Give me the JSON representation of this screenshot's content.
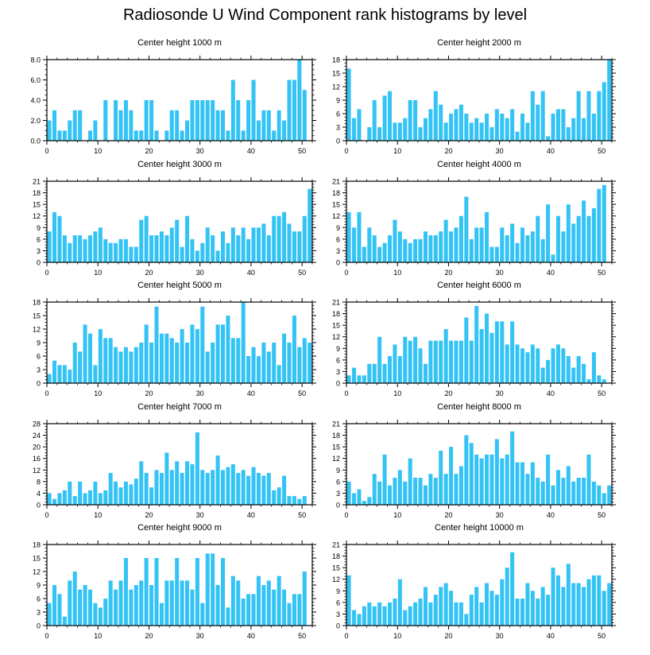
{
  "title": "Radiosonde U Wind Component rank histograms by level",
  "chart_data": [
    {
      "type": "bar",
      "title": "Center height 1000 m",
      "xlabel": "",
      "ylabel": "",
      "xlim": [
        0,
        52
      ],
      "ylim": [
        0,
        8
      ],
      "yticks": [
        0,
        2,
        4,
        6,
        8
      ],
      "ytick_labels": [
        "0.0",
        "2.0",
        "4.0",
        "6.0",
        "8.0"
      ],
      "xticks": [
        0,
        10,
        20,
        30,
        40,
        50
      ],
      "xtick_labels": [
        "0",
        "10",
        "20",
        "30",
        "40",
        "50"
      ],
      "x": [
        0,
        1,
        2,
        3,
        4,
        5,
        6,
        7,
        8,
        9,
        10,
        11,
        12,
        13,
        14,
        15,
        16,
        17,
        18,
        19,
        20,
        21,
        22,
        23,
        24,
        25,
        26,
        27,
        28,
        29,
        30,
        31,
        32,
        33,
        34,
        35,
        36,
        37,
        38,
        39,
        40,
        41,
        42,
        43,
        44,
        45,
        46,
        47,
        48,
        49,
        50,
        51
      ],
      "values": [
        2,
        3,
        1,
        1,
        2,
        3,
        3,
        0,
        1,
        2,
        0,
        4,
        0,
        4,
        3,
        4,
        3,
        1,
        1,
        4,
        4,
        1,
        0,
        1,
        3,
        3,
        1,
        2,
        4,
        4,
        4,
        4,
        4,
        3,
        3,
        1,
        6,
        4,
        1,
        4,
        6,
        2,
        3,
        3,
        1,
        3,
        2,
        6,
        6,
        8,
        5,
        0
      ]
    },
    {
      "type": "bar",
      "title": "Center height 2000 m",
      "xlabel": "",
      "ylabel": "",
      "xlim": [
        0,
        52
      ],
      "ylim": [
        0,
        18
      ],
      "yticks": [
        0,
        3,
        6,
        9,
        12,
        15,
        18
      ],
      "ytick_labels": [
        "0",
        "3",
        "6",
        "9",
        "12",
        "15",
        "18"
      ],
      "xticks": [
        0,
        10,
        20,
        30,
        40,
        50
      ],
      "xtick_labels": [
        "0",
        "10",
        "20",
        "30",
        "40",
        "50"
      ],
      "x": [
        0,
        1,
        2,
        3,
        4,
        5,
        6,
        7,
        8,
        9,
        10,
        11,
        12,
        13,
        14,
        15,
        16,
        17,
        18,
        19,
        20,
        21,
        22,
        23,
        24,
        25,
        26,
        27,
        28,
        29,
        30,
        31,
        32,
        33,
        34,
        35,
        36,
        37,
        38,
        39,
        40,
        41,
        42,
        43,
        44,
        45,
        46,
        47,
        48,
        49,
        50,
        51
      ],
      "values": [
        16,
        5,
        7,
        0,
        3,
        9,
        3,
        10,
        11,
        4,
        4,
        5,
        9,
        9,
        3,
        5,
        7,
        11,
        8,
        4,
        6,
        7,
        8,
        6,
        4,
        5,
        4,
        6,
        3,
        7,
        6,
        5,
        7,
        2,
        6,
        4,
        11,
        8,
        11,
        1,
        6,
        7,
        7,
        3,
        5,
        11,
        5,
        11,
        6,
        11,
        13,
        18
      ]
    },
    {
      "type": "bar",
      "title": "Center height 3000 m",
      "xlabel": "",
      "ylabel": "",
      "xlim": [
        0,
        52
      ],
      "ylim": [
        0,
        21
      ],
      "yticks": [
        0,
        3,
        6,
        9,
        12,
        15,
        18,
        21
      ],
      "ytick_labels": [
        "0",
        "3",
        "6",
        "9",
        "12",
        "15",
        "18",
        "21"
      ],
      "xticks": [
        0,
        10,
        20,
        30,
        40,
        50
      ],
      "xtick_labels": [
        "0",
        "10",
        "20",
        "30",
        "40",
        "50"
      ],
      "x": [
        0,
        1,
        2,
        3,
        4,
        5,
        6,
        7,
        8,
        9,
        10,
        11,
        12,
        13,
        14,
        15,
        16,
        17,
        18,
        19,
        20,
        21,
        22,
        23,
        24,
        25,
        26,
        27,
        28,
        29,
        30,
        31,
        32,
        33,
        34,
        35,
        36,
        37,
        38,
        39,
        40,
        41,
        42,
        43,
        44,
        45,
        46,
        47,
        48,
        49,
        50,
        51
      ],
      "values": [
        8,
        13,
        12,
        7,
        5,
        7,
        7,
        6,
        7,
        8,
        9,
        6,
        5,
        5,
        6,
        6,
        4,
        4,
        11,
        12,
        7,
        7,
        8,
        7,
        9,
        11,
        4,
        12,
        6,
        3,
        5,
        9,
        7,
        3,
        8,
        5,
        9,
        7,
        9,
        6,
        9,
        9,
        10,
        7,
        12,
        12,
        13,
        10,
        8,
        8,
        12,
        19
      ]
    },
    {
      "type": "bar",
      "title": "Center height 4000 m",
      "xlabel": "",
      "ylabel": "",
      "xlim": [
        0,
        52
      ],
      "ylim": [
        0,
        21
      ],
      "yticks": [
        0,
        3,
        6,
        9,
        12,
        15,
        18,
        21
      ],
      "ytick_labels": [
        "0",
        "3",
        "6",
        "9",
        "12",
        "15",
        "18",
        "21"
      ],
      "xticks": [
        0,
        10,
        20,
        30,
        40,
        50
      ],
      "xtick_labels": [
        "0",
        "10",
        "20",
        "30",
        "40",
        "50"
      ],
      "x": [
        0,
        1,
        2,
        3,
        4,
        5,
        6,
        7,
        8,
        9,
        10,
        11,
        12,
        13,
        14,
        15,
        16,
        17,
        18,
        19,
        20,
        21,
        22,
        23,
        24,
        25,
        26,
        27,
        28,
        29,
        30,
        31,
        32,
        33,
        34,
        35,
        36,
        37,
        38,
        39,
        40,
        41,
        42,
        43,
        44,
        45,
        46,
        47,
        48,
        49,
        50,
        51
      ],
      "values": [
        13,
        9,
        13,
        4,
        9,
        7,
        4,
        5,
        7,
        11,
        8,
        6,
        5,
        6,
        6,
        8,
        7,
        7,
        8,
        11,
        8,
        9,
        12,
        17,
        6,
        9,
        9,
        13,
        4,
        4,
        9,
        7,
        10,
        5,
        9,
        7,
        8,
        12,
        6,
        15,
        2,
        12,
        8,
        15,
        10,
        12,
        16,
        12,
        14,
        19,
        20,
        0
      ]
    },
    {
      "type": "bar",
      "title": "Center height 5000 m",
      "xlabel": "",
      "ylabel": "",
      "xlim": [
        0,
        52
      ],
      "ylim": [
        0,
        18
      ],
      "yticks": [
        0,
        3,
        6,
        9,
        12,
        15,
        18
      ],
      "ytick_labels": [
        "0",
        "3",
        "6",
        "9",
        "12",
        "15",
        "18"
      ],
      "xticks": [
        0,
        10,
        20,
        30,
        40,
        50
      ],
      "xtick_labels": [
        "0",
        "10",
        "20",
        "30",
        "40",
        "50"
      ],
      "x": [
        0,
        1,
        2,
        3,
        4,
        5,
        6,
        7,
        8,
        9,
        10,
        11,
        12,
        13,
        14,
        15,
        16,
        17,
        18,
        19,
        20,
        21,
        22,
        23,
        24,
        25,
        26,
        27,
        28,
        29,
        30,
        31,
        32,
        33,
        34,
        35,
        36,
        37,
        38,
        39,
        40,
        41,
        42,
        43,
        44,
        45,
        46,
        47,
        48,
        49,
        50,
        51
      ],
      "values": [
        2,
        5,
        4,
        4,
        3,
        9,
        7,
        13,
        11,
        4,
        12,
        10,
        10,
        8,
        7,
        8,
        7,
        8,
        9,
        13,
        9,
        17,
        11,
        11,
        10,
        9,
        12,
        9,
        13,
        12,
        17,
        7,
        9,
        13,
        13,
        15,
        10,
        10,
        18,
        6,
        8,
        6,
        9,
        7,
        9,
        4,
        11,
        9,
        15,
        8,
        10,
        9
      ]
    },
    {
      "type": "bar",
      "title": "Center height 6000 m",
      "xlabel": "",
      "ylabel": "",
      "xlim": [
        0,
        52
      ],
      "ylim": [
        0,
        21
      ],
      "yticks": [
        0,
        3,
        6,
        9,
        12,
        15,
        18,
        21
      ],
      "ytick_labels": [
        "0",
        "3",
        "6",
        "9",
        "12",
        "15",
        "18",
        "21"
      ],
      "xticks": [
        0,
        10,
        20,
        30,
        40,
        50
      ],
      "xtick_labels": [
        "0",
        "10",
        "20",
        "30",
        "40",
        "50"
      ],
      "x": [
        0,
        1,
        2,
        3,
        4,
        5,
        6,
        7,
        8,
        9,
        10,
        11,
        12,
        13,
        14,
        15,
        16,
        17,
        18,
        19,
        20,
        21,
        22,
        23,
        24,
        25,
        26,
        27,
        28,
        29,
        30,
        31,
        32,
        33,
        34,
        35,
        36,
        37,
        38,
        39,
        40,
        41,
        42,
        43,
        44,
        45,
        46,
        47,
        48,
        49,
        50,
        51
      ],
      "values": [
        2,
        4,
        2,
        2,
        5,
        5,
        12,
        5,
        7,
        10,
        7,
        12,
        11,
        12,
        9,
        5,
        11,
        11,
        11,
        14,
        11,
        11,
        11,
        17,
        11,
        20,
        14,
        18,
        13,
        16,
        16,
        10,
        16,
        10,
        9,
        8,
        10,
        9,
        4,
        6,
        9,
        10,
        9,
        7,
        4,
        7,
        5,
        1,
        8,
        2,
        1,
        0
      ]
    },
    {
      "type": "bar",
      "title": "Center height 7000 m",
      "xlabel": "",
      "ylabel": "",
      "xlim": [
        0,
        52
      ],
      "ylim": [
        0,
        28
      ],
      "yticks": [
        0,
        4,
        8,
        12,
        16,
        20,
        24,
        28
      ],
      "ytick_labels": [
        "0",
        "4",
        "8",
        "12",
        "16",
        "20",
        "24",
        "28"
      ],
      "xticks": [
        0,
        10,
        20,
        30,
        40,
        50
      ],
      "xtick_labels": [
        "0",
        "10",
        "20",
        "30",
        "40",
        "50"
      ],
      "x": [
        0,
        1,
        2,
        3,
        4,
        5,
        6,
        7,
        8,
        9,
        10,
        11,
        12,
        13,
        14,
        15,
        16,
        17,
        18,
        19,
        20,
        21,
        22,
        23,
        24,
        25,
        26,
        27,
        28,
        29,
        30,
        31,
        32,
        33,
        34,
        35,
        36,
        37,
        38,
        39,
        40,
        41,
        42,
        43,
        44,
        45,
        46,
        47,
        48,
        49,
        50,
        51
      ],
      "values": [
        4,
        2,
        4,
        5,
        8,
        3,
        8,
        4,
        5,
        8,
        4,
        5,
        11,
        8,
        6,
        8,
        7,
        9,
        15,
        11,
        6,
        12,
        11,
        18,
        12,
        15,
        11,
        15,
        14,
        25,
        12,
        11,
        12,
        17,
        12,
        13,
        14,
        11,
        12,
        10,
        13,
        11,
        10,
        11,
        5,
        6,
        10,
        3,
        3,
        2,
        3,
        0
      ]
    },
    {
      "type": "bar",
      "title": "Center height 8000 m",
      "xlabel": "",
      "ylabel": "",
      "xlim": [
        0,
        52
      ],
      "ylim": [
        0,
        21
      ],
      "yticks": [
        0,
        3,
        6,
        9,
        12,
        15,
        18,
        21
      ],
      "ytick_labels": [
        "0",
        "3",
        "6",
        "9",
        "12",
        "15",
        "18",
        "21"
      ],
      "xticks": [
        0,
        10,
        20,
        30,
        40,
        50
      ],
      "xtick_labels": [
        "0",
        "10",
        "20",
        "30",
        "40",
        "50"
      ],
      "x": [
        0,
        1,
        2,
        3,
        4,
        5,
        6,
        7,
        8,
        9,
        10,
        11,
        12,
        13,
        14,
        15,
        16,
        17,
        18,
        19,
        20,
        21,
        22,
        23,
        24,
        25,
        26,
        27,
        28,
        29,
        30,
        31,
        32,
        33,
        34,
        35,
        36,
        37,
        38,
        39,
        40,
        41,
        42,
        43,
        44,
        45,
        46,
        47,
        48,
        49,
        50,
        51
      ],
      "values": [
        6,
        3,
        4,
        1,
        2,
        8,
        6,
        13,
        5,
        7,
        9,
        6,
        12,
        7,
        7,
        5,
        8,
        7,
        14,
        8,
        15,
        8,
        10,
        18,
        16,
        13,
        12,
        13,
        13,
        17,
        12,
        13,
        19,
        11,
        11,
        8,
        11,
        7,
        6,
        13,
        5,
        9,
        7,
        10,
        6,
        7,
        7,
        13,
        6,
        5,
        3,
        5
      ]
    },
    {
      "type": "bar",
      "title": "Center height 9000 m",
      "xlabel": "",
      "ylabel": "",
      "xlim": [
        0,
        52
      ],
      "ylim": [
        0,
        18
      ],
      "yticks": [
        0,
        3,
        6,
        9,
        12,
        15,
        18
      ],
      "ytick_labels": [
        "0",
        "3",
        "6",
        "9",
        "12",
        "15",
        "18"
      ],
      "xticks": [
        0,
        10,
        20,
        30,
        40,
        50
      ],
      "xtick_labels": [
        "0",
        "10",
        "20",
        "30",
        "40",
        "50"
      ],
      "x": [
        0,
        1,
        2,
        3,
        4,
        5,
        6,
        7,
        8,
        9,
        10,
        11,
        12,
        13,
        14,
        15,
        16,
        17,
        18,
        19,
        20,
        21,
        22,
        23,
        24,
        25,
        26,
        27,
        28,
        29,
        30,
        31,
        32,
        33,
        34,
        35,
        36,
        37,
        38,
        39,
        40,
        41,
        42,
        43,
        44,
        45,
        46,
        47,
        48,
        49,
        50,
        51
      ],
      "values": [
        5,
        9,
        7,
        2,
        10,
        12,
        8,
        9,
        8,
        5,
        4,
        6,
        10,
        8,
        10,
        15,
        8,
        9,
        10,
        15,
        9,
        15,
        5,
        10,
        10,
        15,
        10,
        10,
        8,
        15,
        5,
        16,
        16,
        9,
        15,
        4,
        11,
        10,
        6,
        7,
        7,
        11,
        9,
        10,
        8,
        11,
        8,
        5,
        7,
        7,
        12,
        0
      ]
    },
    {
      "type": "bar",
      "title": "Center height 10000 m",
      "xlabel": "",
      "ylabel": "",
      "xlim": [
        0,
        52
      ],
      "ylim": [
        0,
        21
      ],
      "yticks": [
        0,
        3,
        6,
        9,
        12,
        15,
        18,
        21
      ],
      "ytick_labels": [
        "0",
        "3",
        "6",
        "9",
        "12",
        "15",
        "18",
        "21"
      ],
      "xticks": [
        0,
        10,
        20,
        30,
        40,
        50
      ],
      "xtick_labels": [
        "0",
        "10",
        "20",
        "30",
        "40",
        "50"
      ],
      "x": [
        0,
        1,
        2,
        3,
        4,
        5,
        6,
        7,
        8,
        9,
        10,
        11,
        12,
        13,
        14,
        15,
        16,
        17,
        18,
        19,
        20,
        21,
        22,
        23,
        24,
        25,
        26,
        27,
        28,
        29,
        30,
        31,
        32,
        33,
        34,
        35,
        36,
        37,
        38,
        39,
        40,
        41,
        42,
        43,
        44,
        45,
        46,
        47,
        48,
        49,
        50,
        51
      ],
      "values": [
        13,
        4,
        3,
        5,
        6,
        5,
        6,
        5,
        6,
        7,
        12,
        4,
        5,
        6,
        7,
        10,
        6,
        8,
        10,
        11,
        9,
        6,
        6,
        3,
        8,
        10,
        6,
        11,
        9,
        8,
        12,
        15,
        19,
        7,
        7,
        11,
        9,
        7,
        10,
        8,
        15,
        13,
        10,
        16,
        11,
        11,
        10,
        12,
        13,
        13,
        9,
        11
      ]
    }
  ],
  "colors": {
    "bar": "#33c3f5",
    "axis": "#000000",
    "text": "#000000"
  }
}
